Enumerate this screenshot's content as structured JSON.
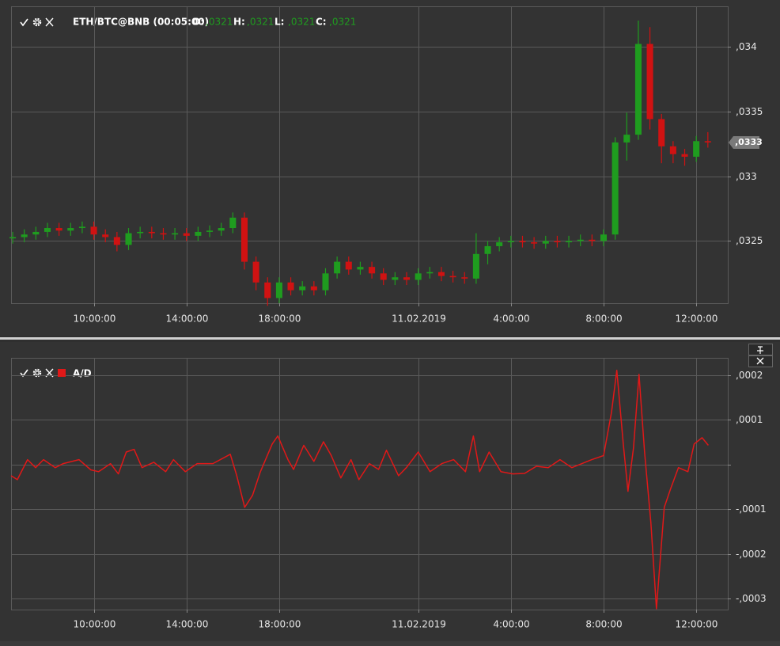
{
  "chart_data": [
    {
      "type": "candlestick",
      "header": {
        "security": "ETH/BTC@BNB (00:05:00)",
        "fields": [
          {
            "name": "O:",
            "value": ",0321"
          },
          {
            "name": "H:",
            "value": ",0321"
          },
          {
            "name": "L:",
            "value": ",0321"
          },
          {
            "name": "C:",
            "value": ",0321"
          }
        ]
      },
      "last_price_label": ",0333",
      "up_color": "#1f9c1f",
      "down_color": "#d01212",
      "xlim": [
        6.43,
        37.36
      ],
      "xticks": [
        {
          "value": 10,
          "label": "10:00:00"
        },
        {
          "value": 14,
          "label": "14:00:00"
        },
        {
          "value": 18,
          "label": "18:00:00"
        },
        {
          "value": 24,
          "label": "11.02.2019"
        },
        {
          "value": 28,
          "label": "4:00:00"
        },
        {
          "value": 32,
          "label": "8:00:00"
        },
        {
          "value": 36,
          "label": "12:00:00"
        }
      ],
      "ylim": [
        0.03202,
        0.03431
      ],
      "yticks": [
        {
          "value": 0.0325,
          "label": ",0325"
        },
        {
          "value": 0.033,
          "label": ",033"
        },
        {
          "value": 0.0335,
          "label": ",0335"
        },
        {
          "value": 0.034,
          "label": ",034"
        }
      ],
      "grid": true,
      "x": [
        6.5,
        7,
        7.5,
        8,
        8.5,
        9,
        9.5,
        10,
        10.5,
        11,
        11.5,
        12,
        12.5,
        13,
        13.5,
        14,
        14.5,
        15,
        15.5,
        16,
        16.5,
        17,
        17.5,
        18,
        18.5,
        19,
        19.5,
        20,
        20.5,
        21,
        21.5,
        22,
        22.5,
        23,
        23.5,
        24,
        24.5,
        25,
        25.5,
        26,
        26.5,
        27,
        27.5,
        28,
        28.5,
        29,
        29.5,
        30,
        30.5,
        31,
        31.5,
        32,
        32.5,
        33,
        33.5,
        34,
        34.5,
        35,
        35.5,
        36,
        36.5
      ],
      "open": [
        0.03252,
        0.03253,
        0.03255,
        0.03257,
        0.0326,
        0.03258,
        0.0326,
        0.03261,
        0.03255,
        0.03253,
        0.03247,
        0.03256,
        0.03257,
        0.03256,
        0.03255,
        0.03256,
        0.03254,
        0.03257,
        0.03258,
        0.0326,
        0.03268,
        0.03234,
        0.03218,
        0.03206,
        0.03218,
        0.03212,
        0.03215,
        0.03212,
        0.03225,
        0.03234,
        0.03228,
        0.0323,
        0.03225,
        0.0322,
        0.03222,
        0.0322,
        0.03225,
        0.03226,
        0.03223,
        0.03222,
        0.03221,
        0.0324,
        0.03246,
        0.03249,
        0.0325,
        0.03249,
        0.03248,
        0.0325,
        0.03249,
        0.0325,
        0.03251,
        0.0325,
        0.03255,
        0.03326,
        0.03332,
        0.03402,
        0.03344,
        0.03323,
        0.03317,
        0.03315,
        0.03327
      ],
      "high": [
        0.03257,
        0.03259,
        0.03261,
        0.03264,
        0.03264,
        0.03264,
        0.03265,
        0.03265,
        0.03259,
        0.03257,
        0.0326,
        0.03261,
        0.03261,
        0.0326,
        0.0326,
        0.0326,
        0.03261,
        0.03262,
        0.03264,
        0.03272,
        0.03272,
        0.03238,
        0.03222,
        0.03222,
        0.03222,
        0.03219,
        0.03219,
        0.03229,
        0.03238,
        0.03238,
        0.03234,
        0.03234,
        0.03229,
        0.03226,
        0.03226,
        0.03229,
        0.0323,
        0.0323,
        0.03227,
        0.03226,
        0.03256,
        0.0325,
        0.03253,
        0.03254,
        0.03254,
        0.03253,
        0.03254,
        0.03254,
        0.03254,
        0.03255,
        0.03255,
        0.03259,
        0.0333,
        0.03349,
        0.0342,
        0.03415,
        0.03348,
        0.03327,
        0.03321,
        0.03331,
        0.03334
      ],
      "low": [
        0.03248,
        0.03249,
        0.03251,
        0.03253,
        0.03254,
        0.03254,
        0.03256,
        0.03251,
        0.03249,
        0.03242,
        0.03243,
        0.03252,
        0.03252,
        0.03251,
        0.03251,
        0.0325,
        0.0325,
        0.03253,
        0.03254,
        0.03256,
        0.03228,
        0.03212,
        0.032,
        0.03202,
        0.03208,
        0.03208,
        0.03208,
        0.03208,
        0.03221,
        0.03224,
        0.03224,
        0.03221,
        0.03216,
        0.03216,
        0.03216,
        0.03216,
        0.03221,
        0.03219,
        0.03218,
        0.03217,
        0.03217,
        0.03232,
        0.03242,
        0.03245,
        0.03245,
        0.03244,
        0.03244,
        0.03245,
        0.03245,
        0.03246,
        0.03246,
        0.03246,
        0.03251,
        0.03312,
        0.03328,
        0.03336,
        0.0331,
        0.0331,
        0.03308,
        0.03311,
        0.03322
      ],
      "close": [
        0.03253,
        0.03255,
        0.03257,
        0.0326,
        0.03258,
        0.0326,
        0.03261,
        0.03255,
        0.03253,
        0.03247,
        0.03256,
        0.03257,
        0.03256,
        0.03255,
        0.03256,
        0.03254,
        0.03257,
        0.03258,
        0.0326,
        0.03268,
        0.03234,
        0.03218,
        0.03206,
        0.03218,
        0.03212,
        0.03215,
        0.03212,
        0.03225,
        0.03234,
        0.03228,
        0.0323,
        0.03225,
        0.0322,
        0.03222,
        0.0322,
        0.03225,
        0.03226,
        0.03223,
        0.03222,
        0.03221,
        0.0324,
        0.03246,
        0.03249,
        0.0325,
        0.03249,
        0.03248,
        0.0325,
        0.03249,
        0.0325,
        0.03251,
        0.0325,
        0.03255,
        0.03326,
        0.03332,
        0.03402,
        0.03344,
        0.03323,
        0.03317,
        0.03315,
        0.03327,
        0.03326
      ]
    },
    {
      "type": "line",
      "xlim": [
        6.43,
        37.36
      ],
      "xticks": [
        {
          "value": 10,
          "label": "10:00:00"
        },
        {
          "value": 14,
          "label": "14:00:00"
        },
        {
          "value": 18,
          "label": "18:00:00"
        },
        {
          "value": 24,
          "label": "11.02.2019"
        },
        {
          "value": 28,
          "label": "4:00:00"
        },
        {
          "value": 32,
          "label": "8:00:00"
        },
        {
          "value": 36,
          "label": "12:00:00"
        }
      ],
      "ylim": [
        -0.000325,
        0.000239
      ],
      "yticks": [
        {
          "value": -0.0003,
          "label": "-,0003"
        },
        {
          "value": -0.0002,
          "label": "-,0002"
        },
        {
          "value": -0.0001,
          "label": "-,0001"
        },
        {
          "value": 0,
          "label": null
        },
        {
          "value": 0.0001,
          "label": ",0001"
        },
        {
          "value": 0.0002,
          "label": ",0002"
        }
      ],
      "grid": true,
      "x": [
        6.43,
        6.7,
        7.14,
        7.49,
        7.83,
        8.34,
        8.68,
        9.36,
        9.87,
        10.21,
        10.72,
        11.06,
        11.4,
        11.74,
        12.08,
        12.59,
        13.1,
        13.44,
        13.95,
        14.46,
        15.14,
        15.89,
        16.17,
        16.51,
        16.85,
        17.19,
        17.7,
        17.94,
        18.38,
        18.62,
        19.06,
        19.5,
        19.91,
        20.25,
        20.66,
        21.1,
        21.44,
        21.89,
        22.29,
        22.63,
        23.15,
        23.49,
        24,
        24.51,
        25.02,
        25.53,
        26.04,
        26.38,
        26.65,
        27.06,
        27.57,
        28.08,
        28.59,
        29.1,
        29.61,
        30.12,
        30.63,
        31.49,
        32,
        32.34,
        32.57,
        32.85,
        33.05,
        33.29,
        33.53,
        33.77,
        34.04,
        34.28,
        34.62,
        34.89,
        35.23,
        35.64,
        35.91,
        36.25,
        36.52
      ],
      "series": [
        {
          "name": "A/D",
          "color": "#e01818",
          "values": [
            -2.5e-05,
            -3.4e-05,
            1.1e-05,
            -7e-06,
            1.1e-05,
            -7e-06,
            2e-06,
            1.1e-05,
            -1.2e-05,
            -1.6e-05,
            2e-06,
            -2.1e-05,
            2.8e-05,
            3.4e-05,
            -7e-06,
            5e-06,
            -1.6e-05,
            1.1e-05,
            -1.6e-05,
            2e-06,
            2e-06,
            2.3e-05,
            -2.5e-05,
            -9.6e-05,
            -6.9e-05,
            -1.6e-05,
            4.6e-05,
            6.4e-05,
            1.1e-05,
            -1.1e-05,
            4.3e-05,
            7e-06,
            5.1e-05,
            2e-05,
            -3e-05,
            1.1e-05,
            -3.4e-05,
            2e-06,
            -1.1e-05,
            3.2e-05,
            -2.5e-05,
            -7e-06,
            2.8e-05,
            -1.6e-05,
            2e-06,
            1.1e-05,
            -1.6e-05,
            6.4e-05,
            -1.6e-05,
            2.8e-05,
            -1.6e-05,
            -2.1e-05,
            -2e-05,
            -4e-06,
            -7e-06,
            1.1e-05,
            -7e-06,
            1.1e-05,
            2e-05,
            0.000117,
            0.000211,
            4.6e-05,
            -6e-05,
            3.7e-05,
            0.000202,
            2.8e-05,
            -0.000131,
            -0.000323,
            -9.6e-05,
            -5.5e-05,
            -7e-06,
            -1.6e-05,
            4.6e-05,
            6e-05,
            4.3e-05
          ]
        }
      ]
    }
  ]
}
